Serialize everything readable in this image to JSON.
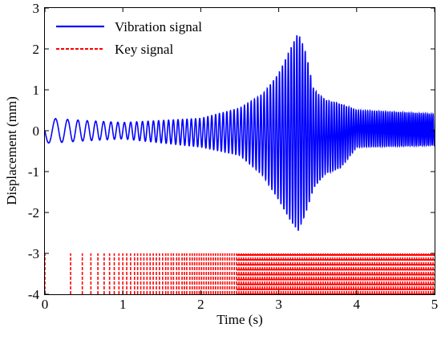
{
  "chart_data": {
    "type": "line",
    "xlabel": "Time (s)",
    "ylabel": "Displacement (mm)",
    "xlim": [
      0,
      5
    ],
    "ylim": [
      -4,
      3
    ],
    "x_ticks": [
      "0",
      "1",
      "2",
      "3",
      "4",
      "5"
    ],
    "y_ticks": [
      "-4",
      "-3",
      "-2",
      "-1",
      "0",
      "1",
      "2",
      "3"
    ],
    "grid": false,
    "legend_position": "top-left",
    "series": [
      {
        "name": "Vibration signal",
        "style": "solid",
        "color": "#0000ff",
        "description_points": {
          "t": [
            0,
            0.1,
            0.5,
            1.0,
            1.5,
            2.0,
            2.5,
            2.8,
            3.0,
            3.15,
            3.25,
            3.35,
            3.45,
            3.6,
            3.8,
            4.0,
            5.0
          ],
          "envelope_upper": [
            0.3,
            0.3,
            0.25,
            0.2,
            0.25,
            0.3,
            0.55,
            0.9,
            1.4,
            2.0,
            2.4,
            1.9,
            1.0,
            0.75,
            0.65,
            0.5,
            0.4
          ],
          "envelope_lower": [
            -0.3,
            -0.3,
            -0.25,
            -0.2,
            -0.3,
            -0.4,
            -0.6,
            -1.1,
            -1.7,
            -2.2,
            -2.45,
            -2.0,
            -1.4,
            -1.05,
            -0.9,
            -0.4,
            -0.35
          ]
        }
      },
      {
        "name": "Key signal",
        "style": "dashed",
        "color": "#ff0000",
        "y_low": -4,
        "y_high": -3,
        "pulse_times_s": [
          0.0,
          0.33,
          0.48,
          0.59,
          0.68,
          0.76,
          0.83,
          0.89,
          0.95,
          1.0,
          1.05,
          1.1,
          1.15,
          1.19,
          1.23,
          1.27,
          1.31,
          1.35,
          1.39,
          1.43,
          1.47,
          1.51,
          1.55,
          1.58,
          1.62,
          1.65,
          1.69,
          1.72,
          1.76,
          1.79,
          1.82,
          1.86,
          1.89,
          1.92,
          1.95,
          1.98,
          2.01,
          2.04,
          2.07,
          2.1,
          2.13,
          2.16,
          2.19,
          2.22,
          2.25,
          2.28,
          2.31,
          2.34,
          2.37,
          2.4,
          2.43,
          2.46
        ]
      }
    ]
  }
}
